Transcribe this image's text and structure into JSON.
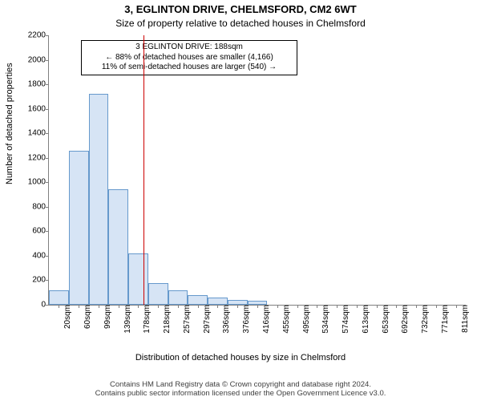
{
  "title": "3, EGLINTON DRIVE, CHELMSFORD, CM2 6WT",
  "subtitle": "Size of property relative to detached houses in Chelmsford",
  "ylabel": "Number of detached properties",
  "xlabel": "Distribution of detached houses by size in Chelmsford",
  "footer_line1": "Contains HM Land Registry data © Crown copyright and database right 2024.",
  "footer_line2": "Contains public sector information licensed under the Open Government Licence v3.0.",
  "chart": {
    "type": "histogram",
    "background_color": "#ffffff",
    "axis_color": "#808080",
    "bar_fill": "#d6e4f5",
    "bar_border": "#6699cc",
    "bar_border_width": 1,
    "bar_width_ratio": 1.0,
    "ylim": [
      0,
      2200
    ],
    "ytick_step": 200,
    "yticks": [
      0,
      200,
      400,
      600,
      800,
      1000,
      1200,
      1400,
      1600,
      1800,
      2000,
      2200
    ],
    "x_categories": [
      "20sqm",
      "60sqm",
      "99sqm",
      "139sqm",
      "178sqm",
      "218sqm",
      "257sqm",
      "297sqm",
      "336sqm",
      "376sqm",
      "416sqm",
      "455sqm",
      "495sqm",
      "534sqm",
      "574sqm",
      "613sqm",
      "653sqm",
      "692sqm",
      "732sqm",
      "771sqm",
      "811sqm"
    ],
    "values": [
      120,
      1260,
      1720,
      940,
      420,
      180,
      120,
      80,
      60,
      40,
      30,
      0,
      0,
      0,
      0,
      0,
      0,
      0,
      0,
      0,
      0
    ],
    "title_fontsize": 13,
    "subtitle_fontsize": 12,
    "tick_fontsize": 10,
    "label_fontsize": 11,
    "footer_fontsize": 9.5
  },
  "reference_line": {
    "x_sqm": 188,
    "color": "#cc0000",
    "width": 1
  },
  "annotation": {
    "line1": "3 EGLINTON DRIVE: 188sqm",
    "line2": "← 88% of detached houses are smaller (4,166)",
    "line3": "11% of semi-detached houses are larger (540) →",
    "border_color": "#000000",
    "background": "#ffffff",
    "fontsize": 10
  }
}
